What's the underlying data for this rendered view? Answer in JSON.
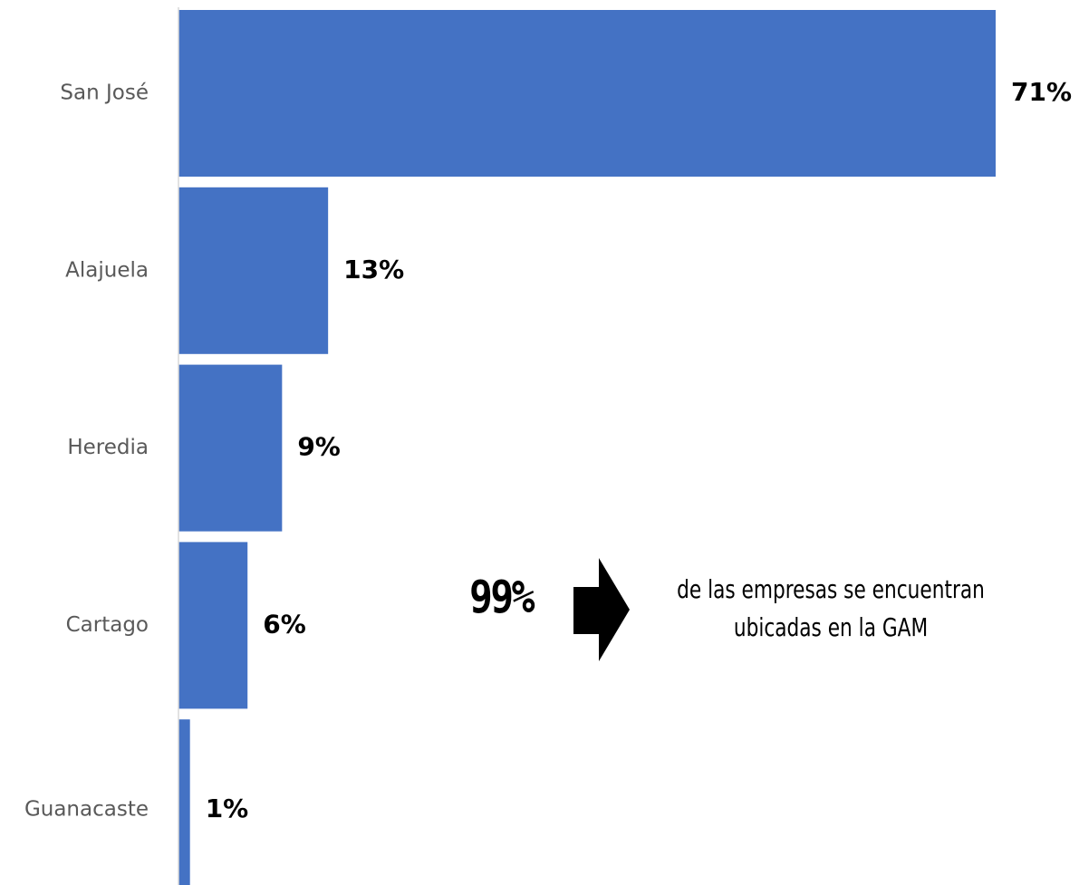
{
  "chart_data": {
    "type": "bar",
    "orientation": "horizontal",
    "categories": [
      "San José",
      "Alajuela",
      "Heredia",
      "Cartago",
      "Guanacaste"
    ],
    "values": [
      71,
      13,
      9,
      6,
      1
    ],
    "value_labels": [
      "71%",
      "13%",
      "9%",
      "6%",
      "1%"
    ],
    "unit": "%",
    "xlim": [
      0,
      71
    ],
    "grid": false,
    "legend": "none",
    "bar_color": "#4472C4"
  },
  "callout": {
    "number": "99%",
    "text": "de las empresas se encuentran ubicadas en la GAM",
    "arrow_icon": "right-arrow-icon"
  },
  "colors": {
    "bar": "#4472C4",
    "axis": "#D9D9D9",
    "category_text": "#595959",
    "value_text": "#000000"
  }
}
